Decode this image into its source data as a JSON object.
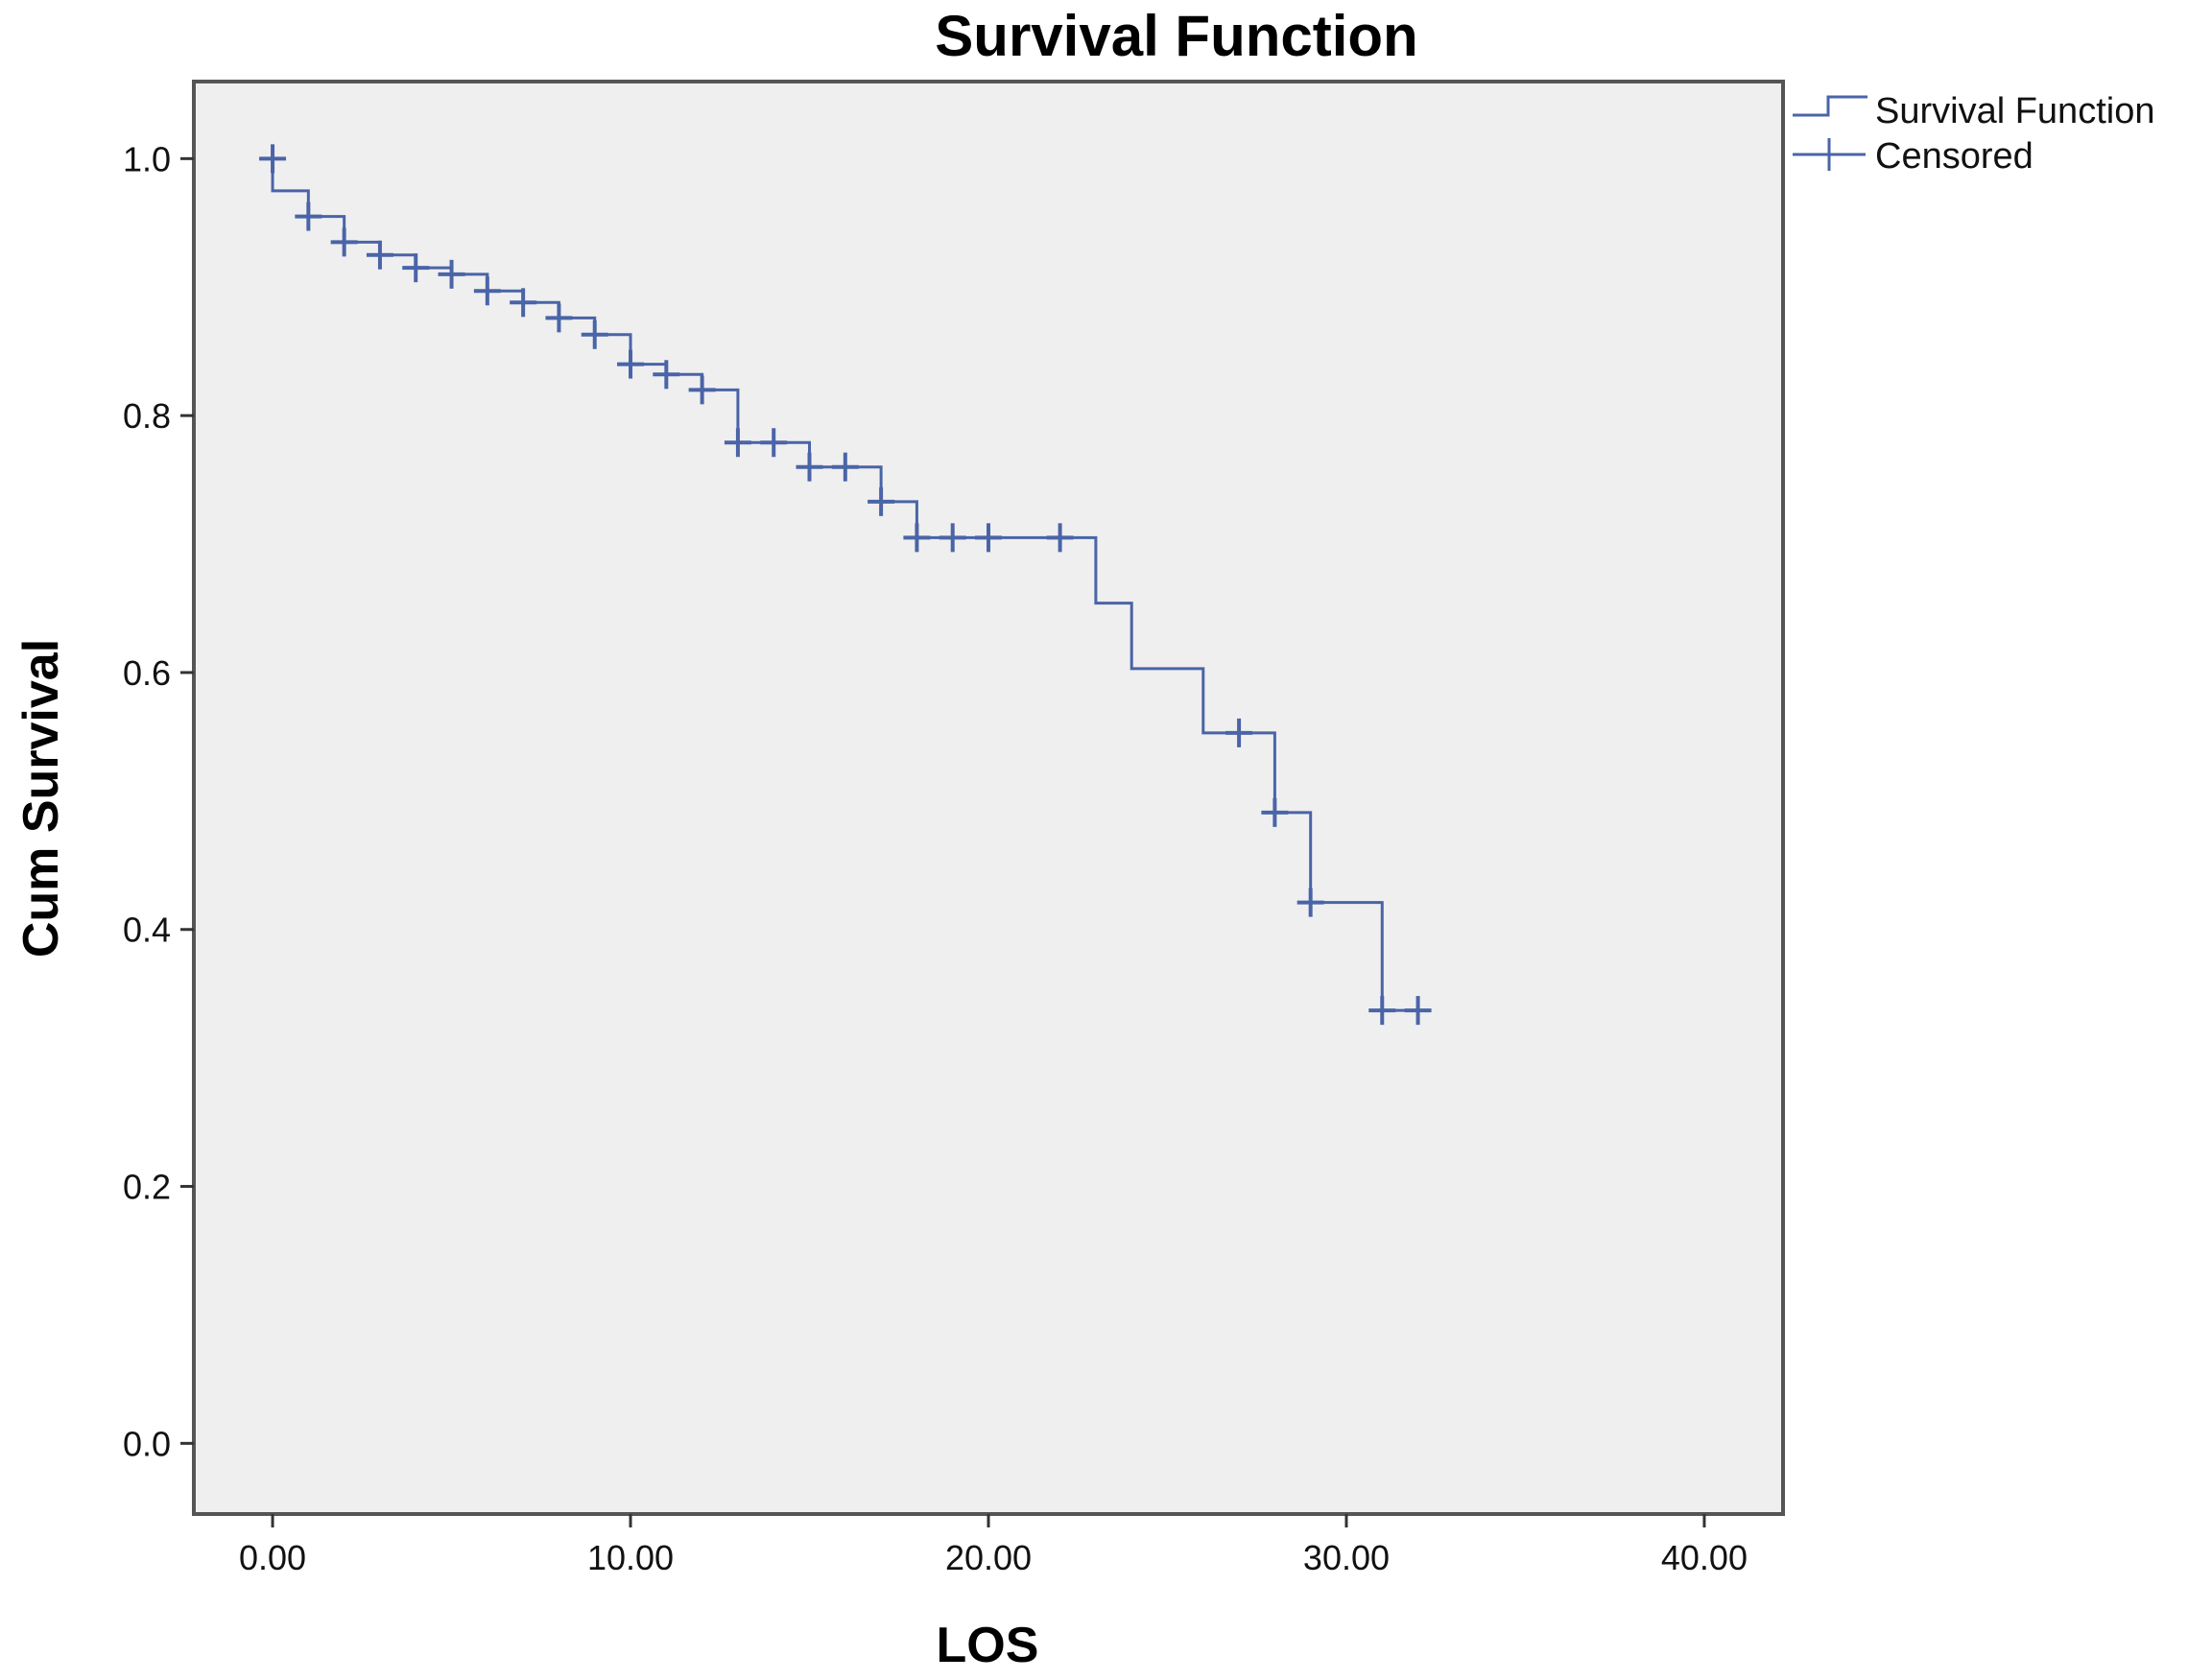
{
  "chart_data": {
    "type": "line",
    "title": "Survival Function",
    "xlabel": "LOS",
    "ylabel": "Cum Survival",
    "xlim": [
      -2.2,
      42.2
    ],
    "ylim": [
      -0.055,
      1.06
    ],
    "x_ticks": [
      0,
      10,
      20,
      30,
      40
    ],
    "x_tick_labels": [
      "0.00",
      "10.00",
      "20.00",
      "30.00",
      "40.00"
    ],
    "y_ticks": [
      0,
      0.2,
      0.4,
      0.6,
      0.8,
      1.0
    ],
    "y_tick_labels": [
      "0.0",
      "0.2",
      "0.4",
      "0.6",
      "0.8",
      "1.0"
    ],
    "grid": false,
    "legend_position": "top-right outside",
    "series": [
      {
        "name": "Survival Function",
        "style": "step",
        "color": "#4a64a8",
        "points": [
          {
            "x": 0,
            "y": 1.0
          },
          {
            "x": 0,
            "y": 0.975
          },
          {
            "x": 1,
            "y": 0.955
          },
          {
            "x": 2,
            "y": 0.935
          },
          {
            "x": 3,
            "y": 0.925
          },
          {
            "x": 4,
            "y": 0.915
          },
          {
            "x": 5,
            "y": 0.91
          },
          {
            "x": 6,
            "y": 0.897
          },
          {
            "x": 7,
            "y": 0.888
          },
          {
            "x": 8,
            "y": 0.876
          },
          {
            "x": 9,
            "y": 0.863
          },
          {
            "x": 10,
            "y": 0.84
          },
          {
            "x": 11,
            "y": 0.832
          },
          {
            "x": 12,
            "y": 0.82
          },
          {
            "x": 13,
            "y": 0.779
          },
          {
            "x": 15,
            "y": 0.76
          },
          {
            "x": 17,
            "y": 0.733
          },
          {
            "x": 18,
            "y": 0.705
          },
          {
            "x": 23,
            "y": 0.654
          },
          {
            "x": 24,
            "y": 0.603
          },
          {
            "x": 26,
            "y": 0.553
          },
          {
            "x": 28,
            "y": 0.491
          },
          {
            "x": 29,
            "y": 0.421
          },
          {
            "x": 31,
            "y": 0.337
          }
        ],
        "end_x": 32
      },
      {
        "name": "Censored",
        "style": "marker-plus",
        "color": "#4a64a8",
        "points": [
          {
            "x": 0,
            "y": 1.0
          },
          {
            "x": 1,
            "y": 0.955
          },
          {
            "x": 2,
            "y": 0.935
          },
          {
            "x": 3,
            "y": 0.925
          },
          {
            "x": 4,
            "y": 0.915
          },
          {
            "x": 5,
            "y": 0.91
          },
          {
            "x": 6,
            "y": 0.897
          },
          {
            "x": 7,
            "y": 0.888
          },
          {
            "x": 8,
            "y": 0.876
          },
          {
            "x": 9,
            "y": 0.863
          },
          {
            "x": 10,
            "y": 0.84
          },
          {
            "x": 11,
            "y": 0.832
          },
          {
            "x": 12,
            "y": 0.82
          },
          {
            "x": 13,
            "y": 0.779
          },
          {
            "x": 14,
            "y": 0.779
          },
          {
            "x": 15,
            "y": 0.76
          },
          {
            "x": 16,
            "y": 0.76
          },
          {
            "x": 17,
            "y": 0.733
          },
          {
            "x": 18,
            "y": 0.705
          },
          {
            "x": 19,
            "y": 0.705
          },
          {
            "x": 20,
            "y": 0.705
          },
          {
            "x": 22,
            "y": 0.705
          },
          {
            "x": 27,
            "y": 0.553
          },
          {
            "x": 28,
            "y": 0.491
          },
          {
            "x": 29,
            "y": 0.421
          },
          {
            "x": 31,
            "y": 0.337
          },
          {
            "x": 32,
            "y": 0.337
          }
        ]
      }
    ]
  },
  "colors": {
    "plot_background": "#efefef",
    "frame": "#555555",
    "series": "#4a64a8"
  }
}
